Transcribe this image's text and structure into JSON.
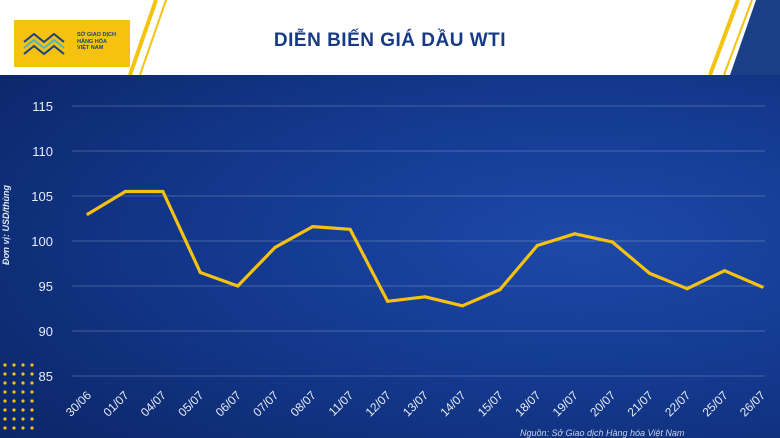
{
  "header": {
    "logo_lines": [
      "SỞ GIAO DỊCH",
      "HÀNG HÓA",
      "VIỆT NAM"
    ],
    "title": "DIỄN BIẾN GIÁ DẦU WTI"
  },
  "colors": {
    "line": "#f7c10f",
    "header_bg": "#ffffff",
    "accent": "#f5c20e",
    "title": "#173a85"
  },
  "source_text": "Nguồn: Sở Giao dịch Hàng hóa Việt Nam",
  "chart_data": {
    "type": "line",
    "title": "DIỄN BIẾN GIÁ DẦU WTI",
    "ylabel": "Đơn vị: USD/thùng",
    "xlabel": "",
    "ylim": [
      85,
      115
    ],
    "yticks": [
      85,
      90,
      95,
      100,
      105,
      110,
      115
    ],
    "grid": true,
    "categories": [
      "30/06",
      "01/07",
      "04/07",
      "05/07",
      "06/07",
      "07/07",
      "08/07",
      "11/07",
      "12/07",
      "13/07",
      "14/07",
      "15/07",
      "18/07",
      "19/07",
      "20/07",
      "21/07",
      "22/07",
      "25/07",
      "26/07"
    ],
    "series": [
      {
        "values": [
          103.0,
          105.5,
          105.5,
          96.5,
          95.0,
          99.3,
          101.6,
          101.3,
          93.3,
          93.8,
          92.8,
          94.6,
          99.5,
          100.8,
          99.9,
          96.4,
          94.7,
          96.7,
          94.9
        ]
      }
    ]
  }
}
